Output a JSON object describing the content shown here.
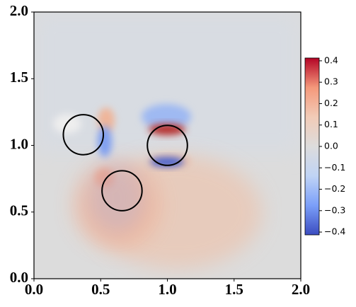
{
  "chart_data": {
    "type": "field",
    "xlim": [
      0,
      2
    ],
    "ylim": [
      0,
      2
    ],
    "xticks": [
      {
        "value": 0,
        "label": "0.0"
      },
      {
        "value": 0.5,
        "label": "0.5"
      },
      {
        "value": 1,
        "label": "1.0"
      },
      {
        "value": 1.5,
        "label": "1.5"
      },
      {
        "value": 2,
        "label": "2.0"
      }
    ],
    "yticks": [
      {
        "value": 0,
        "label": "0.0"
      },
      {
        "value": 0.5,
        "label": "0.5"
      },
      {
        "value": 1,
        "label": "1.0"
      },
      {
        "value": 1.5,
        "label": "1.5"
      },
      {
        "value": 2,
        "label": "2.0"
      }
    ],
    "circles": [
      {
        "x": 0.37,
        "y": 1.08,
        "r": 0.15
      },
      {
        "x": 1.0,
        "y": 1.0,
        "r": 0.15
      },
      {
        "x": 0.66,
        "y": 0.66,
        "r": 0.15
      }
    ],
    "circle_color": "#000000",
    "colorbar": {
      "lim": [
        -0.413,
        0.413
      ],
      "ticks": [
        {
          "value": 0.4,
          "label": "0.4"
        },
        {
          "value": 0.3,
          "label": "0.3"
        },
        {
          "value": 0.2,
          "label": "0.2"
        },
        {
          "value": 0.1,
          "label": "0.1"
        },
        {
          "value": 0,
          "label": "0.0"
        },
        {
          "value": -0.1,
          "label": "−0.1"
        },
        {
          "value": -0.2,
          "label": "−0.2"
        },
        {
          "value": -0.3,
          "label": "−0.3"
        },
        {
          "value": -0.4,
          "label": "−0.4"
        }
      ],
      "colors": [
        "#3b4cc0",
        "#7b9ff9",
        "#c0d4f5",
        "#dddcdc",
        "#f2cbb7",
        "#f4987a",
        "#b40426"
      ]
    }
  }
}
